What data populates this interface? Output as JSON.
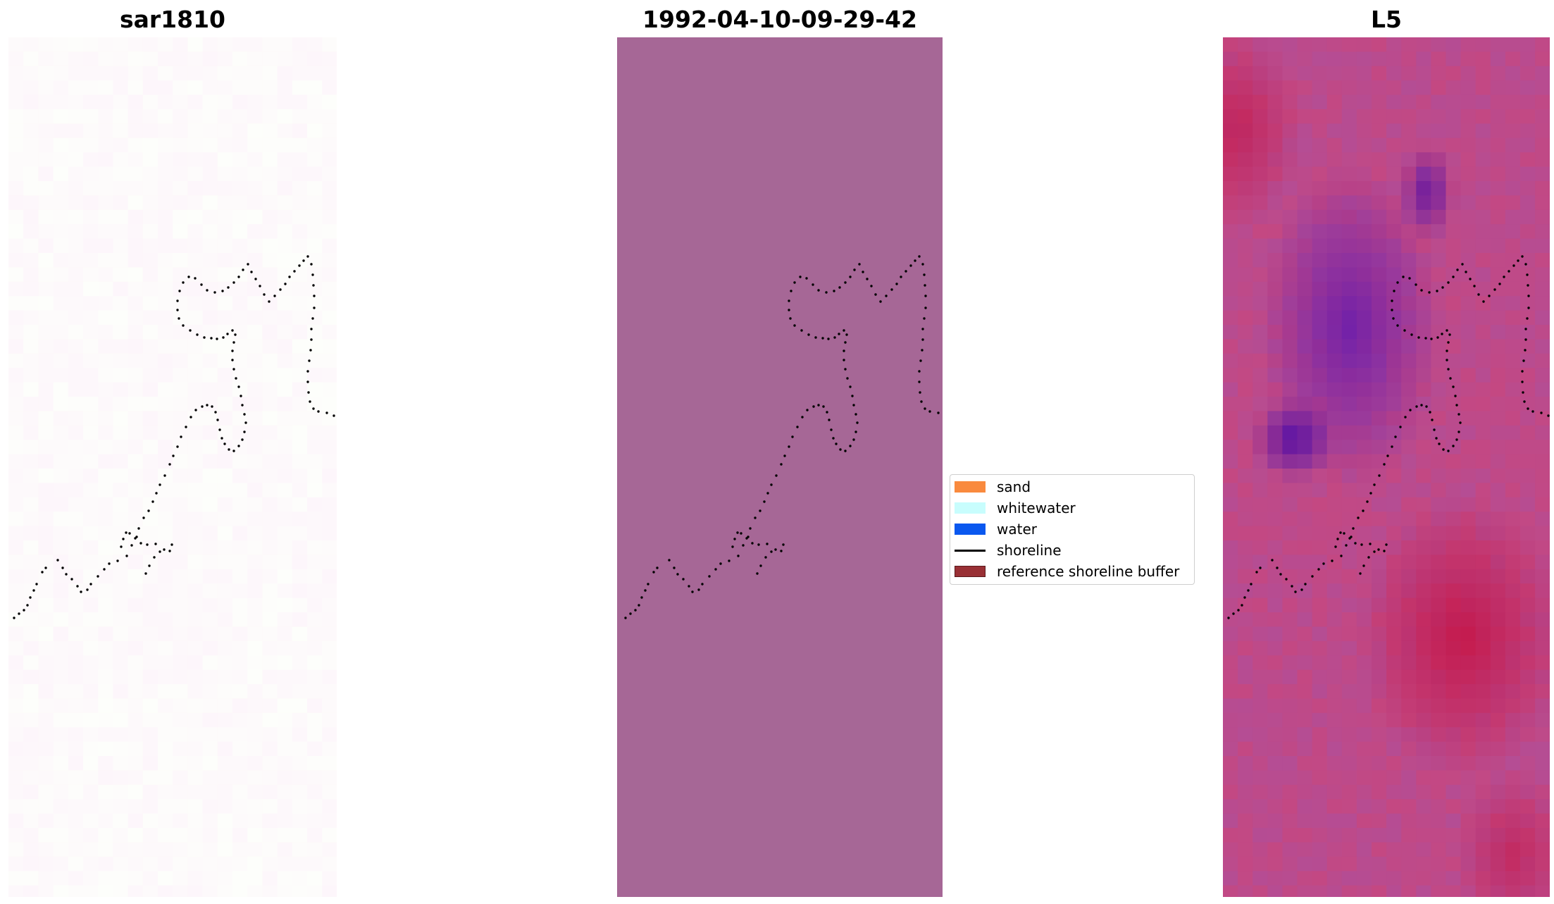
{
  "panels": [
    {
      "title": "sar1810",
      "background": "#fdf6fb"
    },
    {
      "title": "1992-04-10-09-29-42",
      "background": "#a66796"
    },
    {
      "title": "L5"
    }
  ],
  "legend": {
    "items": [
      {
        "label": "sand",
        "color": "#f98a3e",
        "kind": "patch"
      },
      {
        "label": "whitewater",
        "color": "#c8fdfd",
        "kind": "patch"
      },
      {
        "label": "water",
        "color": "#0a58ef",
        "kind": "patch"
      },
      {
        "label": "shoreline",
        "color": "#000000",
        "kind": "line"
      },
      {
        "label": "reference shoreline buffer",
        "color": "#993035",
        "kind": "patch"
      }
    ]
  }
}
